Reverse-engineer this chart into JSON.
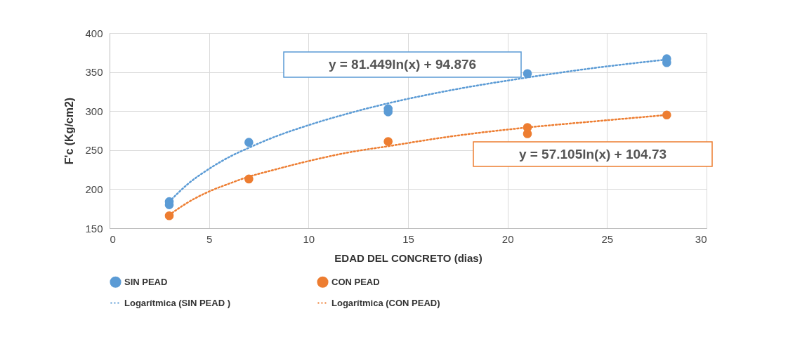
{
  "chart_data": {
    "type": "scatter",
    "xlabel": "EDAD DEL CONCRETO (dias)",
    "ylabel": "F'c (Kg/cm2)",
    "xlim": [
      0,
      30
    ],
    "xticks": [
      0,
      5,
      10,
      15,
      20,
      25,
      30
    ],
    "ylim": [
      150,
      400
    ],
    "yticks": [
      150,
      200,
      250,
      300,
      350,
      400
    ],
    "grid": true,
    "legend": "bottom",
    "series": [
      {
        "name": "SIN PEAD",
        "marker": "circle",
        "color": "#5b9bd5",
        "x": [
          3,
          3,
          7,
          14,
          14,
          21,
          28,
          28
        ],
        "values": [
          180,
          184,
          260,
          299,
          303,
          348,
          362,
          367
        ]
      },
      {
        "name": "CON PEAD",
        "marker": "circle",
        "color": "#ed7d31",
        "x": [
          3,
          7,
          14,
          21,
          21,
          28
        ],
        "values": [
          166,
          213,
          261,
          271,
          279,
          295
        ]
      },
      {
        "name": "Logarítmica (SIN PEAD )",
        "type": "line",
        "line_style": "dotted",
        "color": "#5b9bd5",
        "x": [
          3,
          4,
          5,
          6,
          7,
          8,
          10,
          12,
          14,
          17,
          21,
          24,
          28
        ],
        "values": [
          184,
          208,
          226,
          241,
          253,
          264,
          282,
          297,
          310,
          326,
          343,
          354,
          366
        ]
      },
      {
        "name": "Logarítmica (CON PEAD)",
        "type": "line",
        "line_style": "dotted",
        "color": "#ed7d31",
        "x": [
          3,
          4,
          5,
          6,
          7,
          8,
          10,
          12,
          14,
          17,
          21,
          24,
          28
        ],
        "values": [
          167,
          184,
          197,
          207,
          216,
          223,
          236,
          247,
          255,
          267,
          279,
          286,
          295
        ]
      }
    ],
    "annotations": [
      "y = 81.449ln(x) + 94.876",
      "y = 57.105ln(x) + 104.73"
    ]
  }
}
